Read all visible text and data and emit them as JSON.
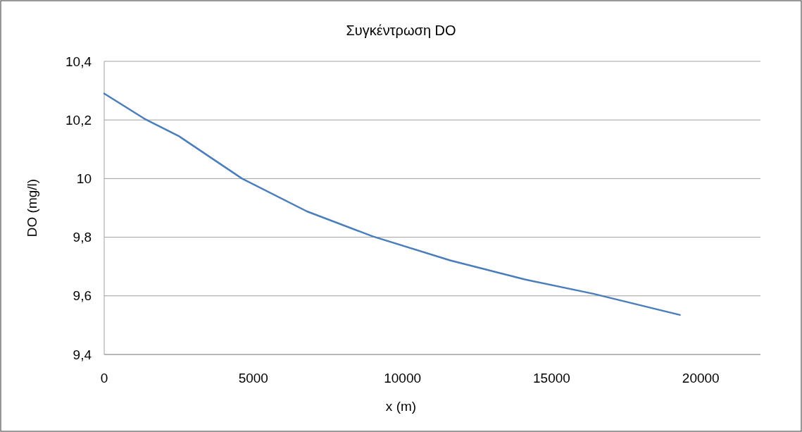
{
  "chart_data": {
    "type": "line",
    "title": "Συγκέντρωση DO",
    "xlabel": "x (m)",
    "ylabel": "DO (mg/l)",
    "x": [
      0,
      1350,
      2500,
      4620,
      6800,
      9000,
      11600,
      14100,
      16400,
      19300
    ],
    "series": [
      {
        "color": "#4a7ebb",
        "values": [
          10.29,
          10.204,
          10.145,
          10.0,
          9.888,
          9.803,
          9.721,
          9.656,
          9.607,
          9.535
        ]
      }
    ],
    "xlim": [
      0,
      22000
    ],
    "xticks": [
      0,
      5000,
      10000,
      15000,
      20000
    ],
    "ylim": [
      9.4,
      10.4
    ],
    "yticks": [
      {
        "value": 9.4,
        "label": "9,4"
      },
      {
        "value": 9.6,
        "label": "9,6"
      },
      {
        "value": 9.8,
        "label": "9,8"
      },
      {
        "value": 10,
        "label": "10"
      },
      {
        "value": 10.2,
        "label": "10,2"
      },
      {
        "value": 10.4,
        "label": "10,4"
      }
    ],
    "grid": "y",
    "marker": "none",
    "line_style": "solid"
  }
}
